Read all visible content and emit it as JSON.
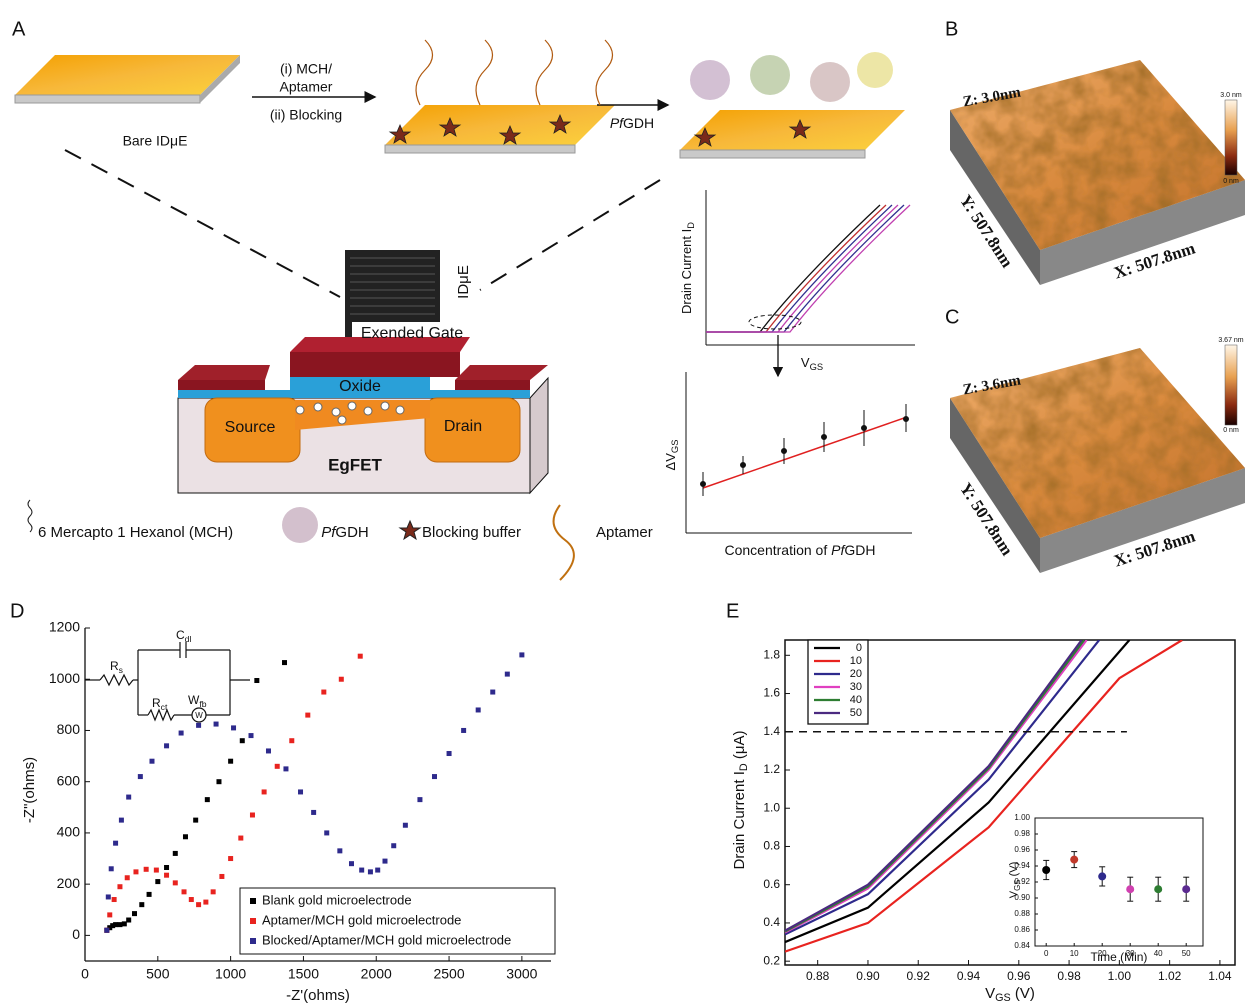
{
  "panels": {
    "a": "A",
    "b": "B",
    "c": "C",
    "d": "D",
    "e": "E"
  },
  "schematic": {
    "bare_label": "Bare IDμE",
    "step1": [
      "(i) MCH/",
      "Aptamer",
      "(ii) Blocking"
    ],
    "step2": {
      "italic": "Pf",
      "rest": "GDH"
    },
    "ide_label": "IDμE",
    "gate_label": "Exended Gate",
    "oxide": "Oxide",
    "source": "Source",
    "drain": "Drain",
    "device": "EgFET",
    "legend": {
      "mch": "6 Mercapto 1 Hexanol (MCH)",
      "target": {
        "italic": "Pf",
        "rest": "GDH"
      },
      "blocking": "Blocking buffer",
      "aptamer": "Aptamer"
    },
    "iv_plot": {
      "ylabel": {
        "main": "Drain Current I",
        "sub": "D"
      },
      "xlabel": {
        "main": "V",
        "sub": "GS"
      }
    },
    "cal_plot": {
      "ylabel": {
        "main": "ΔV",
        "sub": "GS"
      },
      "xlabel": {
        "main": "Concentration of ",
        "italic": "Pf",
        "rest": "GDH"
      }
    }
  },
  "afm": [
    {
      "z": "Z: 3.0nm",
      "y": "Y: 507.8nm",
      "x": "X: 507.8nm",
      "scale_max": "3.0 nm",
      "scale_min": "0 nm"
    },
    {
      "z": "Z: 3.6nm",
      "y": "Y: 507.8nm",
      "x": "X: 507.8nm",
      "scale_max": "3.67 nm",
      "scale_min": "0 nm"
    }
  ],
  "chart_data": [
    {
      "type": "scatter",
      "xlabel": "-Z'(ohms)",
      "ylabel": "-Z\"(ohms)",
      "xlim": [
        0,
        3200
      ],
      "ylim": [
        -100,
        1200
      ],
      "xticks": [
        0,
        500,
        1000,
        1500,
        2000,
        2500,
        3000
      ],
      "yticks": [
        0,
        200,
        400,
        600,
        800,
        1000,
        1200
      ],
      "circuit": {
        "rs": {
          "main": "R",
          "sub": "s"
        },
        "cdl": {
          "main": "C",
          "sub": "dl"
        },
        "rct": {
          "main": "R",
          "sub": "ct"
        },
        "wfb": {
          "main": "W",
          "sub": "fb"
        },
        "w": "W"
      },
      "series": [
        {
          "name": "Blank gold microelectrode",
          "color": "#000000",
          "x": [
            150,
            170,
            190,
            210,
            240,
            270,
            300,
            340,
            390,
            440,
            500,
            560,
            620,
            690,
            760,
            840,
            920,
            1000,
            1080,
            1180,
            1370
          ],
          "values": [
            20,
            30,
            38,
            42,
            42,
            45,
            60,
            85,
            120,
            160,
            210,
            265,
            320,
            385,
            450,
            530,
            600,
            680,
            760,
            995,
            1065
          ]
        },
        {
          "name": "Aptamer/MCH gold microelectrode",
          "color": "#e8231f",
          "x": [
            150,
            170,
            200,
            240,
            290,
            350,
            420,
            490,
            560,
            620,
            680,
            730,
            780,
            830,
            880,
            940,
            1000,
            1070,
            1150,
            1230,
            1320,
            1420,
            1530,
            1640,
            1760,
            1890
          ],
          "values": [
            20,
            80,
            140,
            190,
            225,
            248,
            258,
            255,
            235,
            205,
            170,
            140,
            120,
            130,
            170,
            230,
            300,
            380,
            470,
            560,
            660,
            760,
            860,
            950,
            1000,
            1090
          ]
        },
        {
          "name": "Blocked/Aptamer/MCH gold microelectrode",
          "color": "#2e2a8c",
          "x": [
            150,
            160,
            180,
            210,
            250,
            300,
            380,
            460,
            560,
            660,
            780,
            900,
            1020,
            1140,
            1260,
            1380,
            1480,
            1570,
            1660,
            1750,
            1830,
            1900,
            1960,
            2010,
            2060,
            2120,
            2200,
            2300,
            2400,
            2500,
            2600,
            2700,
            2800,
            2900,
            3000
          ],
          "values": [
            20,
            150,
            260,
            360,
            450,
            540,
            620,
            680,
            740,
            790,
            820,
            825,
            810,
            780,
            720,
            650,
            560,
            480,
            400,
            330,
            280,
            255,
            248,
            255,
            290,
            350,
            430,
            530,
            620,
            710,
            800,
            880,
            950,
            1020,
            1095
          ]
        }
      ]
    },
    {
      "type": "line",
      "xlabel": {
        "main": "V",
        "sub": "GS",
        "unit": " (V)"
      },
      "ylabel": {
        "main": "Drain Current I",
        "sub": "D",
        "unit": " (μA)"
      },
      "xlim": [
        0.867,
        1.046
      ],
      "ylim": [
        0.18,
        1.88
      ],
      "xticks": [
        0.88,
        {
          "value": 0.9,
          "label": "0.90"
        },
        0.92,
        0.94,
        0.96,
        0.98,
        {
          "value": 1,
          "label": "1.00"
        },
        1.02,
        1.04
      ],
      "yticks": [
        0.2,
        0.4,
        0.6,
        0.8,
        {
          "value": 1,
          "label": "1.0"
        },
        1.2,
        1.4,
        1.6,
        1.8
      ],
      "reference_line": {
        "y": 1.4,
        "x_end": 1.003
      },
      "series": [
        {
          "name": "0",
          "color": "#000000",
          "x": [
            0.867,
            0.9,
            0.948,
            1.004
          ],
          "values": [
            0.3,
            0.48,
            1.03,
            1.88
          ]
        },
        {
          "name": "10",
          "color": "#e8231f",
          "x": [
            0.867,
            0.9,
            0.948,
            1.0,
            1.025
          ],
          "values": [
            0.25,
            0.4,
            0.9,
            1.68,
            1.88
          ]
        },
        {
          "name": "20",
          "color": "#2e2a8c",
          "x": [
            0.867,
            0.9,
            0.948,
            0.992
          ],
          "values": [
            0.34,
            0.55,
            1.15,
            1.88
          ]
        },
        {
          "name": "30",
          "color": "#e040c0",
          "x": [
            0.867,
            0.9,
            0.948,
            0.987
          ],
          "values": [
            0.35,
            0.58,
            1.2,
            1.88
          ]
        },
        {
          "name": "40",
          "color": "#2e7d32",
          "x": [
            0.867,
            0.9,
            0.948,
            0.986
          ],
          "values": [
            0.355,
            0.59,
            1.21,
            1.88
          ]
        },
        {
          "name": "50",
          "color": "#4b2a80",
          "x": [
            0.867,
            0.9,
            0.948,
            0.985
          ],
          "values": [
            0.36,
            0.6,
            1.22,
            1.88
          ]
        }
      ]
    },
    {
      "type": "errorbar",
      "xlabel": "Time (Min)",
      "ylabel": {
        "main": "V",
        "sub": "GS",
        "unit": " (V)"
      },
      "xlim": [
        -4,
        56
      ],
      "ylim": [
        0.84,
        1.0
      ],
      "xticks": [
        0,
        10,
        20,
        30,
        40,
        50
      ],
      "yticks": [
        0.84,
        0.86,
        0.88,
        {
          "value": 0.9,
          "label": "0.90"
        },
        0.92,
        0.94,
        0.96,
        0.98,
        {
          "value": 1,
          "label": "1.00"
        }
      ],
      "x": [
        0,
        10,
        20,
        30,
        40,
        50
      ],
      "values": [
        0.935,
        0.948,
        0.927,
        0.911,
        0.911,
        0.911
      ],
      "errors": [
        0.012,
        0.01,
        0.012,
        0.015,
        0.015,
        0.015
      ],
      "colors": [
        "#000000",
        "#c0392b",
        "#2e2a8c",
        "#d040b0",
        "#2e7d32",
        "#5b2a90"
      ]
    }
  ]
}
